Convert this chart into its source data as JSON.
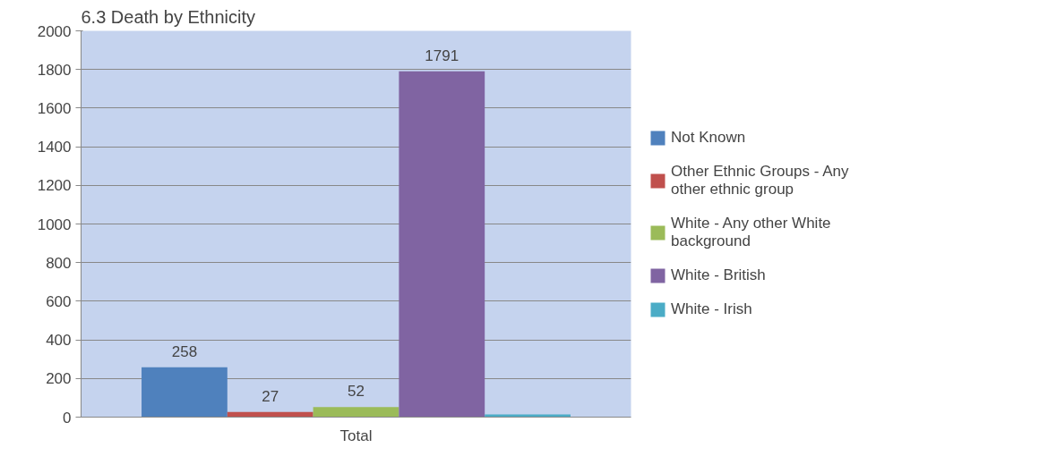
{
  "chart_data": {
    "type": "bar",
    "title": "6.3 Death by Ethnicity",
    "categories": [
      "Total"
    ],
    "series": [
      {
        "name": "Not Known",
        "color": "#4f81bd",
        "values": [
          258
        ],
        "value_labels": [
          "258"
        ]
      },
      {
        "name": "Other Ethnic Groups - Any other ethnic group",
        "color": "#c0504d",
        "values": [
          27
        ],
        "value_labels": [
          "27"
        ]
      },
      {
        "name": "White - Any other White background",
        "color": "#9bbb59",
        "values": [
          52
        ],
        "value_labels": [
          "52"
        ]
      },
      {
        "name": "White - British",
        "color": "#8064a2",
        "values": [
          1791
        ],
        "value_labels": [
          "1791"
        ]
      },
      {
        "name": "White - Irish",
        "color": "#4bacc6",
        "values": [
          14
        ],
        "value_labels": [
          null
        ]
      }
    ],
    "ylim": [
      0,
      2000
    ],
    "yticks": [
      0,
      200,
      400,
      600,
      800,
      1000,
      1200,
      1400,
      1600,
      1800,
      2000
    ],
    "grid": "y",
    "legend": "right"
  }
}
